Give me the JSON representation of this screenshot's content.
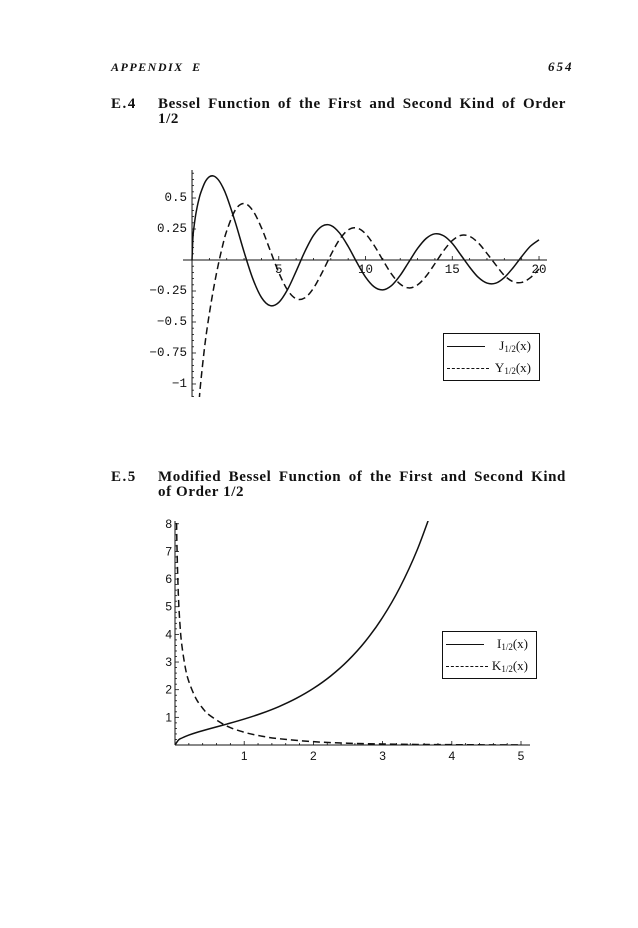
{
  "page": {
    "header_left": "APPENDIX E",
    "page_number": "654"
  },
  "colors": {
    "ink": "#111111",
    "paper": "#ffffff"
  },
  "sections": [
    {
      "number": "E.4",
      "title": "Bessel Function of the First and Second Kind of Order 1/2",
      "title_lines": [
        "Bessel Function of the First and Second Kind of Order",
        "1/2"
      ]
    },
    {
      "number": "E.5",
      "title": "Modified Bessel Function of the First and Second Kind of Order 1/2",
      "title_lines": [
        "Modified Bessel Function of the First and Second Kind",
        "of Order 1/2"
      ]
    }
  ],
  "chart_data": [
    {
      "id": "E.4",
      "type": "line",
      "title": "Bessel Function of the First and Second Kind of Order 1/2",
      "xlabel": "",
      "ylabel": "",
      "xlim": [
        -0.52,
        20.46
      ],
      "ylim": [
        -1.105,
        0.726
      ],
      "grid": false,
      "legend_position": "lower right",
      "x_ticks": [
        5,
        10,
        15,
        20
      ],
      "x_tick_labels": [
        "5",
        "10",
        "15",
        "20"
      ],
      "y_ticks": [
        0.5,
        0.25,
        -0.25,
        -0.5,
        -0.75,
        -1
      ],
      "y_tick_labels": [
        "0.5",
        "0.25",
        "−0.25",
        "−0.5",
        "−0.75",
        "−1"
      ],
      "series": [
        {
          "id": "j-half",
          "name": "J1/2(x)",
          "symbol": "J",
          "subscript": "1/2",
          "arg": "(x)",
          "style": "solid",
          "x": [
            0,
            0.05,
            0.1,
            0.2,
            0.3,
            0.4,
            0.5,
            0.75,
            1,
            1.25,
            1.5,
            1.75,
            2,
            2.5,
            3,
            3.5,
            4,
            4.5,
            5,
            5.5,
            6,
            6.5,
            7,
            7.5,
            8,
            8.5,
            9,
            9.5,
            10,
            10.5,
            11,
            11.5,
            12,
            12.5,
            13,
            13.5,
            14,
            14.5,
            15,
            15.5,
            16,
            16.5,
            17,
            17.5,
            18,
            18.5,
            19,
            19.5,
            20
          ],
          "y": [
            0,
            0.1783,
            0.2519,
            0.3545,
            0.4305,
            0.4913,
            0.541,
            0.628,
            0.6714,
            0.6772,
            0.6498,
            0.5935,
            0.513,
            0.302,
            0.065,
            -0.1496,
            -0.3019,
            -0.3677,
            -0.3422,
            -0.24,
            -0.091,
            0.0673,
            0.1981,
            0.2733,
            0.2791,
            0.2185,
            0.1096,
            -0.0195,
            -0.1373,
            -0.2166,
            -0.2406,
            -0.206,
            -0.1236,
            -0.015,
            0.093,
            0.1745,
            0.2112,
            0.1959,
            0.134,
            0.0393,
            -0.0574,
            -0.1399,
            -0.186,
            -0.187,
            -0.1412,
            -0.0635,
            0.0274,
            0.1108,
            0.1629
          ]
        },
        {
          "id": "y-half",
          "name": "Y1/2(x)",
          "symbol": "Y",
          "subscript": "1/2",
          "arg": "(x)",
          "style": "dashed",
          "x": [
            0.2,
            0.3,
            0.4,
            0.5,
            0.75,
            1,
            1.25,
            1.5,
            1.75,
            2,
            2.5,
            3,
            3.5,
            4,
            4.5,
            5,
            5.5,
            6,
            6.5,
            7,
            7.5,
            8,
            8.5,
            9,
            9.5,
            10,
            10.5,
            11,
            11.5,
            12,
            12.5,
            13,
            13.5,
            14,
            14.5,
            15,
            15.5,
            16,
            16.5,
            17,
            17.5,
            18,
            18.5,
            19,
            19.5,
            20
          ],
          "y": [
            -1.7486,
            -1.3917,
            -1.162,
            -0.9903,
            -0.6741,
            -0.4311,
            -0.225,
            -0.0461,
            0.1075,
            0.2348,
            0.4043,
            0.456,
            0.3994,
            0.2608,
            0.0793,
            -0.1012,
            -0.2411,
            -0.3128,
            -0.3056,
            -0.2274,
            -0.101,
            0.041,
            0.1648,
            0.2423,
            0.2581,
            0.2117,
            0.1171,
            -0.0011,
            -0.1137,
            -0.1944,
            -0.2252,
            -0.2008,
            -0.1292,
            -0.0292,
            0.0744,
            0.1565,
            0.1988,
            0.191,
            0.1379,
            0.0532,
            -0.0377,
            -0.1242,
            -0.1743,
            -0.181,
            -0.1427,
            -0.0728
          ]
        }
      ]
    },
    {
      "id": "E.5",
      "type": "line",
      "title": "Modified Bessel Function of the First and Second Kind of Order 1/2",
      "xlabel": "",
      "ylabel": "",
      "xlim": [
        0,
        5.13
      ],
      "ylim": [
        0,
        8.1
      ],
      "grid": false,
      "legend_position": "center right",
      "x_ticks": [
        1,
        2,
        3,
        4,
        5
      ],
      "x_tick_labels": [
        "1",
        "2",
        "3",
        "4",
        "5"
      ],
      "y_ticks": [
        1,
        2,
        3,
        4,
        5,
        6,
        7,
        8
      ],
      "y_tick_labels": [
        "1",
        "2",
        "3",
        "4",
        "5",
        "6",
        "7",
        "8"
      ],
      "series": [
        {
          "id": "i-half",
          "name": "I1/2(x)",
          "symbol": "I",
          "subscript": "1/2",
          "arg": "(x)",
          "style": "solid",
          "x": [
            0,
            0.05,
            0.1,
            0.2,
            0.3,
            0.5,
            0.75,
            1,
            1.25,
            1.5,
            1.75,
            2,
            2.25,
            2.5,
            2.75,
            3,
            3.25,
            3.5,
            3.75
          ],
          "y": [
            0,
            0.1785,
            0.2527,
            0.3592,
            0.4436,
            0.588,
            0.7576,
            0.9377,
            1.1432,
            1.3872,
            1.683,
            2.0462,
            2.4954,
            3.053,
            3.7478,
            4.6148,
            5.6986,
            7.0552,
            8.7549
          ]
        },
        {
          "id": "k-half",
          "name": "K1/2(x)",
          "symbol": "K",
          "subscript": "1/2",
          "arg": "(x)",
          "style": "dashed",
          "x": [
            0.01,
            0.02,
            0.03,
            0.05,
            0.075,
            0.1,
            0.15,
            0.2,
            0.3,
            0.4,
            0.5,
            0.75,
            1,
            1.25,
            1.5,
            2,
            2.5,
            3,
            3.5,
            4,
            4.5,
            5
          ],
          "y": [
            12.408,
            8.687,
            7.022,
            5.332,
            4.2458,
            3.5862,
            2.7853,
            2.2945,
            1.6952,
            1.3284,
            1.0751,
            0.6836,
            0.4611,
            0.3212,
            0.2283,
            0.1199,
            0.0651,
            0.036,
            0.0202,
            0.0115,
            0.0066,
            0.0038
          ]
        }
      ]
    }
  ]
}
